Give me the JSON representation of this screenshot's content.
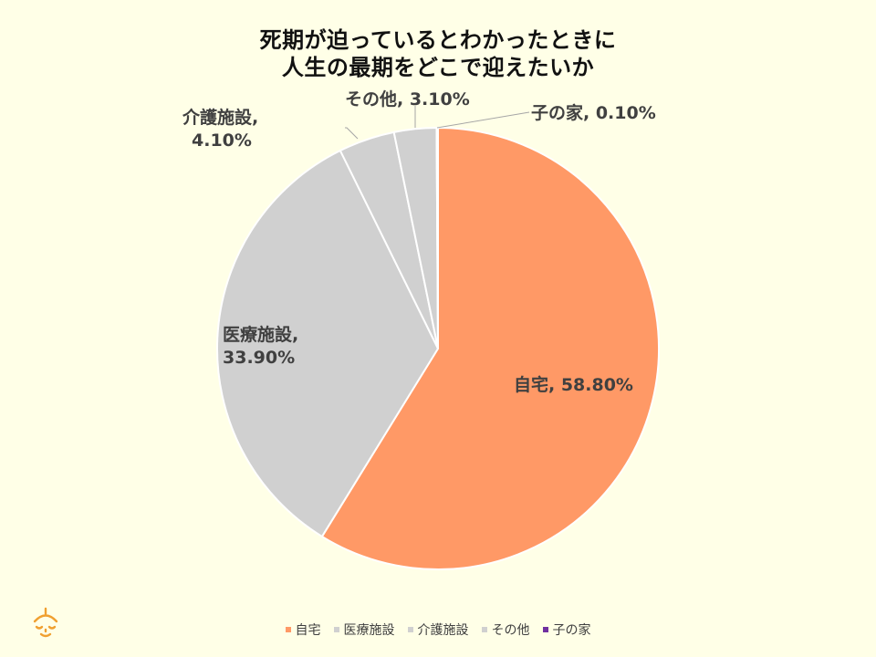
{
  "chart_data": {
    "type": "pie",
    "title": [
      "死期が迫っているとわかったときに",
      "人生の最期をどこで迎えたいか"
    ],
    "slices": [
      {
        "name": "自宅",
        "value": 58.8,
        "label": "58.80%",
        "color": "#FF9966"
      },
      {
        "name": "医療施設",
        "value": 33.9,
        "label": "33.90%",
        "color": "#D0D0D0"
      },
      {
        "name": "介護施設",
        "value": 4.1,
        "label": "4.10%",
        "color": "#D0D0D0"
      },
      {
        "name": "その他",
        "value": 3.1,
        "label": "3.10%",
        "color": "#D0D0D0"
      },
      {
        "name": "子の家",
        "value": 0.1,
        "label": "0.10%",
        "color": "#7030A0"
      }
    ],
    "legend": {
      "position": "bottom"
    },
    "data_labels": {
      "jitaku": "自宅, 58.80%",
      "iryou_name": "医療施設,",
      "iryou_value": "33.90%",
      "kaigo_name": "介護施設,",
      "kaigo_value": "4.10%",
      "sonota": "その他, 3.10%",
      "konoie": "子の家, 0.10%"
    }
  },
  "legend_labels": [
    "自宅",
    "医療施設",
    "介護施設",
    "その他",
    "子の家"
  ],
  "logo": {
    "icon": "person-face-icon",
    "color": "#F0A030"
  }
}
